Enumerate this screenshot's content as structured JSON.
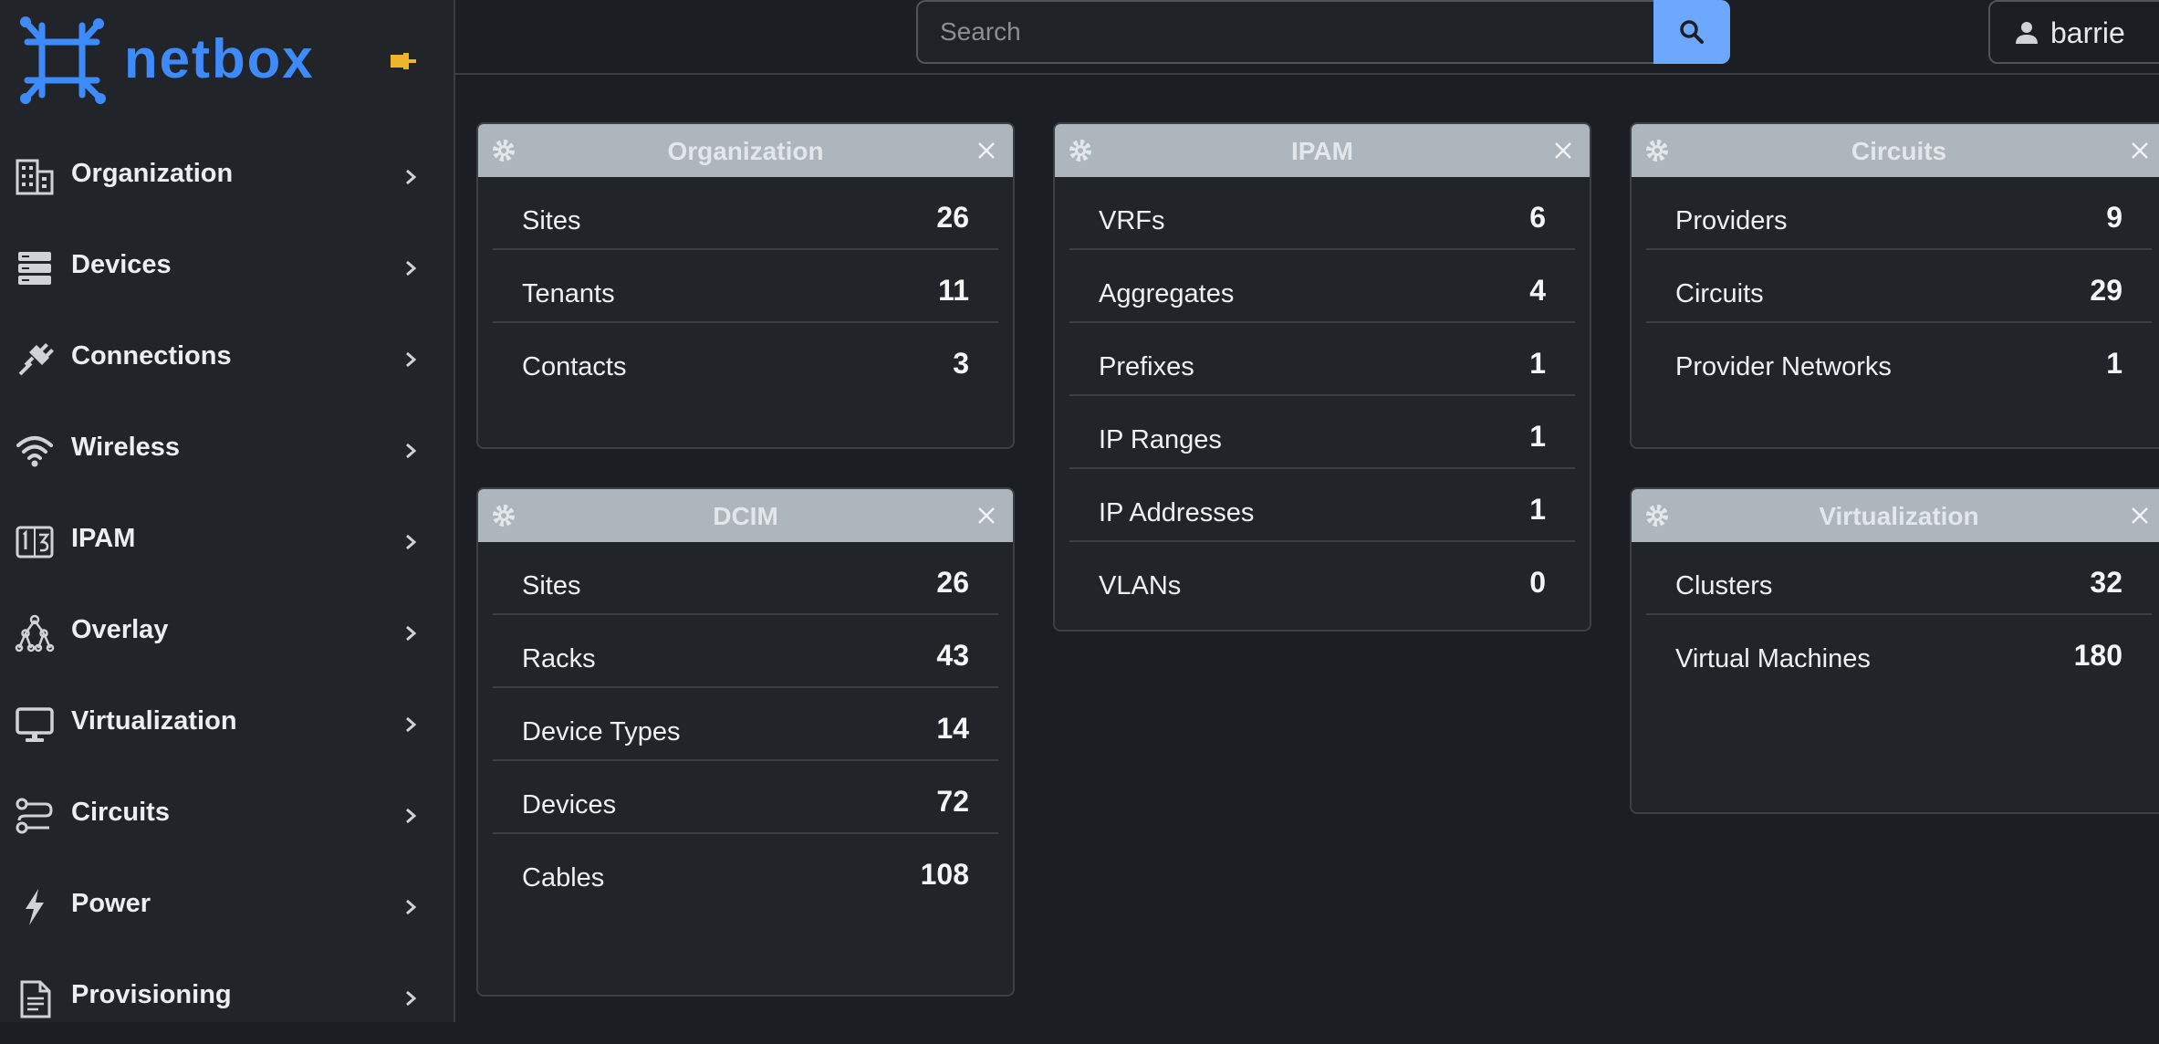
{
  "brand": {
    "name": "netbox"
  },
  "sidebar": {
    "items": [
      {
        "label": "Organization",
        "icon": "building-icon"
      },
      {
        "label": "Devices",
        "icon": "server-icon"
      },
      {
        "label": "Connections",
        "icon": "plug-icon"
      },
      {
        "label": "Wireless",
        "icon": "wifi-icon"
      },
      {
        "label": "IPAM",
        "icon": "ipam-icon"
      },
      {
        "label": "Overlay",
        "icon": "overlay-icon"
      },
      {
        "label": "Virtualization",
        "icon": "monitor-icon"
      },
      {
        "label": "Circuits",
        "icon": "circuit-icon"
      },
      {
        "label": "Power",
        "icon": "lightning-icon"
      },
      {
        "label": "Provisioning",
        "icon": "document-icon"
      }
    ]
  },
  "topbar": {
    "search_placeholder": "Search",
    "user_label": "barrie"
  },
  "widgets": {
    "organization": {
      "title": "Organization",
      "rows": [
        {
          "label": "Sites",
          "count": "26"
        },
        {
          "label": "Tenants",
          "count": "11"
        },
        {
          "label": "Contacts",
          "count": "3"
        }
      ]
    },
    "dcim": {
      "title": "DCIM",
      "rows": [
        {
          "label": "Sites",
          "count": "26"
        },
        {
          "label": "Racks",
          "count": "43"
        },
        {
          "label": "Device Types",
          "count": "14"
        },
        {
          "label": "Devices",
          "count": "72"
        },
        {
          "label": "Cables",
          "count": "108"
        }
      ]
    },
    "ipam": {
      "title": "IPAM",
      "rows": [
        {
          "label": "VRFs",
          "count": "6"
        },
        {
          "label": "Aggregates",
          "count": "4"
        },
        {
          "label": "Prefixes",
          "count": "1"
        },
        {
          "label": "IP Ranges",
          "count": "1"
        },
        {
          "label": "IP Addresses",
          "count": "1"
        },
        {
          "label": "VLANs",
          "count": "0"
        }
      ]
    },
    "circuits": {
      "title": "Circuits",
      "rows": [
        {
          "label": "Providers",
          "count": "9"
        },
        {
          "label": "Circuits",
          "count": "29"
        },
        {
          "label": "Provider Networks",
          "count": "1"
        }
      ]
    },
    "virtualization": {
      "title": "Virtualization",
      "rows": [
        {
          "label": "Clusters",
          "count": "32"
        },
        {
          "label": "Virtual Machines",
          "count": "180"
        }
      ]
    }
  },
  "colors": {
    "accent": "#3d8bfd",
    "search_button": "#6ea8fe",
    "card_header": "#adb5bd",
    "pin": "#f0b429"
  }
}
